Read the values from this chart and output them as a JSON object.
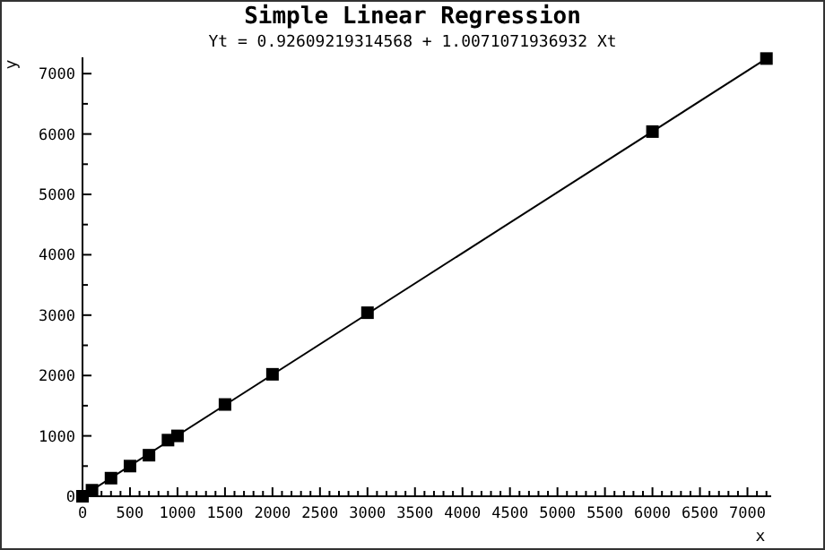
{
  "chart_data": {
    "type": "scatter",
    "title": "Simple Linear Regression",
    "subtitle": "Yt = 0.92609219314568 + 1.0071071936932 Xt",
    "xlabel": "x",
    "ylabel": "y",
    "marker": "square",
    "xlim": [
      0,
      7250
    ],
    "ylim": [
      0,
      7270
    ],
    "xticks": [
      0,
      {
        "value": 100,
        "label": null
      },
      {
        "value": 200,
        "label": null
      },
      {
        "value": 300,
        "label": null
      },
      {
        "value": 400,
        "label": null
      },
      500,
      {
        "value": 600,
        "label": null
      },
      {
        "value": 700,
        "label": null
      },
      {
        "value": 800,
        "label": null
      },
      {
        "value": 900,
        "label": null
      },
      1000,
      {
        "value": 1100,
        "label": null
      },
      {
        "value": 1200,
        "label": null
      },
      {
        "value": 1300,
        "label": null
      },
      {
        "value": 1400,
        "label": null
      },
      1500,
      {
        "value": 1600,
        "label": null
      },
      {
        "value": 1700,
        "label": null
      },
      {
        "value": 1800,
        "label": null
      },
      {
        "value": 1900,
        "label": null
      },
      2000,
      {
        "value": 2100,
        "label": null
      },
      {
        "value": 2200,
        "label": null
      },
      {
        "value": 2300,
        "label": null
      },
      {
        "value": 2400,
        "label": null
      },
      2500,
      {
        "value": 2600,
        "label": null
      },
      {
        "value": 2700,
        "label": null
      },
      {
        "value": 2800,
        "label": null
      },
      {
        "value": 2900,
        "label": null
      },
      3000,
      {
        "value": 3100,
        "label": null
      },
      {
        "value": 3200,
        "label": null
      },
      {
        "value": 3300,
        "label": null
      },
      {
        "value": 3400,
        "label": null
      },
      3500,
      {
        "value": 3600,
        "label": null
      },
      {
        "value": 3700,
        "label": null
      },
      {
        "value": 3800,
        "label": null
      },
      {
        "value": 3900,
        "label": null
      },
      4000,
      {
        "value": 4100,
        "label": null
      },
      {
        "value": 4200,
        "label": null
      },
      {
        "value": 4300,
        "label": null
      },
      {
        "value": 4400,
        "label": null
      },
      4500,
      {
        "value": 4600,
        "label": null
      },
      {
        "value": 4700,
        "label": null
      },
      {
        "value": 4800,
        "label": null
      },
      {
        "value": 4900,
        "label": null
      },
      5000,
      {
        "value": 5100,
        "label": null
      },
      {
        "value": 5200,
        "label": null
      },
      {
        "value": 5300,
        "label": null
      },
      {
        "value": 5400,
        "label": null
      },
      5500,
      {
        "value": 5600,
        "label": null
      },
      {
        "value": 5700,
        "label": null
      },
      {
        "value": 5800,
        "label": null
      },
      {
        "value": 5900,
        "label": null
      },
      6000,
      {
        "value": 6100,
        "label": null
      },
      {
        "value": 6200,
        "label": null
      },
      {
        "value": 6300,
        "label": null
      },
      {
        "value": 6400,
        "label": null
      },
      6500,
      {
        "value": 6600,
        "label": null
      },
      {
        "value": 6700,
        "label": null
      },
      {
        "value": 6800,
        "label": null
      },
      {
        "value": 6900,
        "label": null
      },
      7000,
      {
        "value": 7100,
        "label": null
      },
      {
        "value": 7200,
        "label": null
      }
    ],
    "yticks": [
      0,
      {
        "value": 500,
        "label": null
      },
      1000,
      {
        "value": 1500,
        "label": null
      },
      2000,
      {
        "value": 2500,
        "label": null
      },
      3000,
      {
        "value": 3500,
        "label": null
      },
      4000,
      {
        "value": 4500,
        "label": null
      },
      5000,
      {
        "value": 5500,
        "label": null
      },
      6000,
      {
        "value": 6500,
        "label": null
      },
      7000
    ],
    "series": [
      {
        "type": "line",
        "color": "#000000",
        "marker": "none",
        "x": [
          0,
          7200
        ],
        "values": [
          1,
          7250
        ]
      },
      {
        "color": "#000000",
        "x": [
          0,
          100,
          300,
          500,
          700,
          900,
          1000,
          1500,
          2000,
          3000,
          6000,
          7200
        ],
        "values": [
          0,
          100,
          300,
          500,
          680,
          930,
          1000,
          1520,
          2020,
          3040,
          6040,
          7250
        ]
      }
    ]
  }
}
